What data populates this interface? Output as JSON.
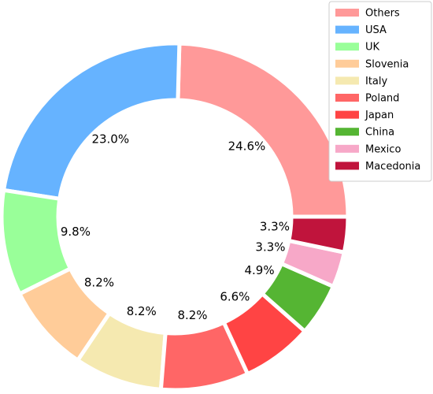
{
  "chart_data": {
    "type": "donut",
    "categories": [
      "Others",
      "USA",
      "UK",
      "Slovenia",
      "Italy",
      "Poland",
      "Japan",
      "China",
      "Mexico",
      "Macedonia"
    ],
    "values": [
      24.6,
      23.0,
      9.8,
      8.2,
      8.2,
      8.2,
      6.6,
      4.9,
      3.3,
      3.3
    ],
    "value_labels": [
      "24.6%",
      "23.0%",
      "9.8%",
      "8.2%",
      "8.2%",
      "8.2%",
      "6.6%",
      "4.9%",
      "3.3%",
      "3.3%"
    ],
    "colors": [
      "#ff9999",
      "#66b3ff",
      "#99ff99",
      "#ffcc99",
      "#f5e9b0",
      "#ff6666",
      "#ff4444",
      "#55b533",
      "#f7a8c8",
      "#c0143c"
    ],
    "legend": "upper right"
  }
}
